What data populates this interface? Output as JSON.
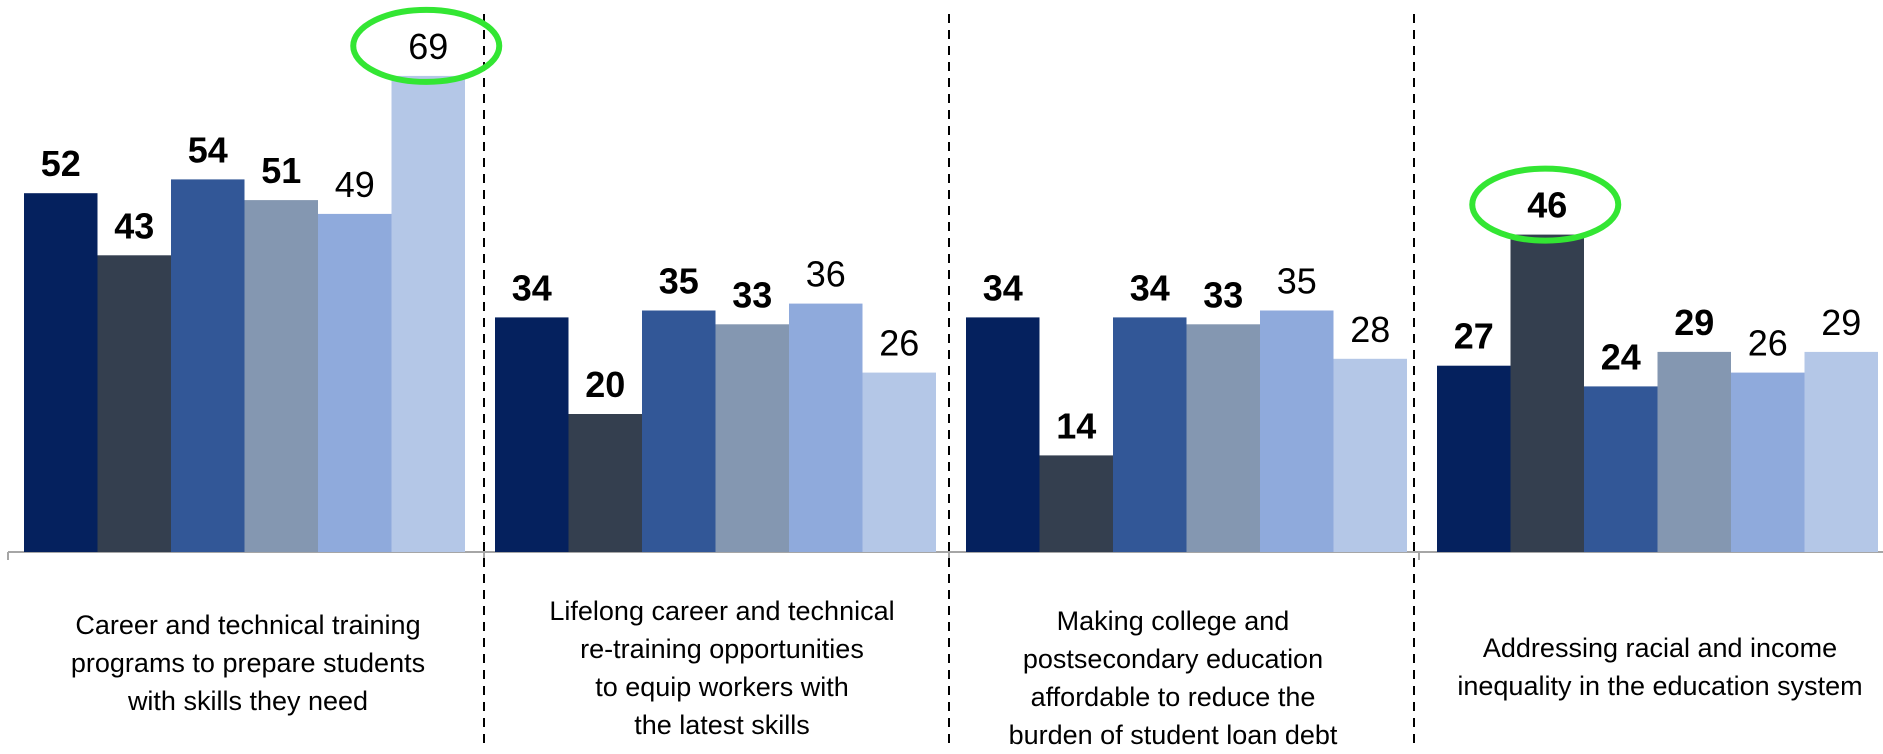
{
  "chart_data": {
    "type": "bar",
    "categories": [
      {
        "lines": [
          "Career and technical training",
          "programs to prepare students",
          "with skills they need"
        ]
      },
      {
        "lines": [
          "Lifelong career and technical",
          "re-training opportunities",
          "to equip workers with",
          "the latest skills"
        ]
      },
      {
        "lines": [
          "Making college and",
          "postsecondary education",
          "affordable to reduce the",
          "burden of student loan debt"
        ]
      },
      {
        "lines": [
          "Addressing racial and income",
          "inequality in the education system"
        ]
      }
    ],
    "series": [
      {
        "color": "#05215e",
        "label_bold": true
      },
      {
        "color": "#343f4f",
        "label_bold": true
      },
      {
        "color": "#325797",
        "label_bold": true
      },
      {
        "color": "#8497b1",
        "label_bold": true
      },
      {
        "color": "#8faadc",
        "label_bold": false
      },
      {
        "color": "#b4c7e7",
        "label_bold": false
      }
    ],
    "values": [
      [
        52,
        43,
        54,
        51,
        49,
        69
      ],
      [
        34,
        20,
        35,
        33,
        36,
        26
      ],
      [
        34,
        14,
        34,
        33,
        35,
        28
      ],
      [
        27,
        46,
        24,
        29,
        26,
        29
      ]
    ],
    "highlighted": [
      {
        "group": 0,
        "series": 5
      },
      {
        "group": 3,
        "series": 1
      }
    ],
    "highlight_color": "#33e633",
    "ylim": [
      0,
      80
    ],
    "grid": false,
    "group_separators": "dashed"
  }
}
